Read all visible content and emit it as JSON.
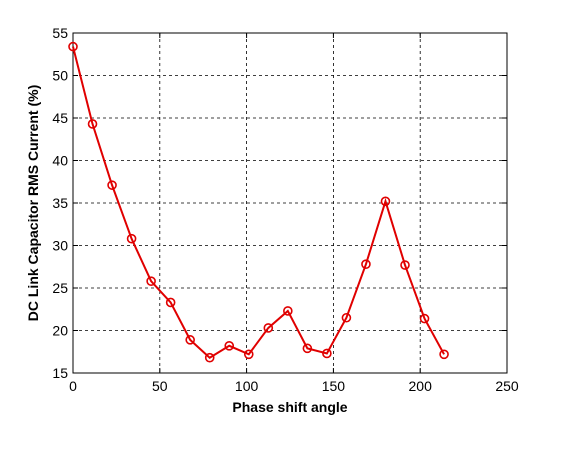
{
  "chart_data": {
    "type": "line",
    "xlabel": "Phase shift angle",
    "ylabel": "DC Link Capacitor RMS Current (%)",
    "xlim": [
      0,
      250
    ],
    "ylim": [
      15,
      55
    ],
    "xticks": [
      0,
      50,
      100,
      150,
      200,
      250
    ],
    "yticks": [
      15,
      20,
      25,
      30,
      35,
      40,
      45,
      50,
      55
    ],
    "grid": true,
    "series": [
      {
        "color": "#e00000",
        "marker": "circle",
        "x": [
          0,
          11.25,
          22.5,
          33.75,
          45,
          56.25,
          67.5,
          78.75,
          90,
          101.25,
          112.5,
          123.75,
          135,
          146.25,
          157.5,
          168.75,
          180,
          191.25,
          202.5,
          213.75
        ],
        "y": [
          53.4,
          44.3,
          37.1,
          30.8,
          25.8,
          23.3,
          18.9,
          16.8,
          18.2,
          17.2,
          20.3,
          22.3,
          17.9,
          17.3,
          21.5,
          27.8,
          35.2,
          27.7,
          21.4,
          17.2
        ]
      }
    ]
  }
}
